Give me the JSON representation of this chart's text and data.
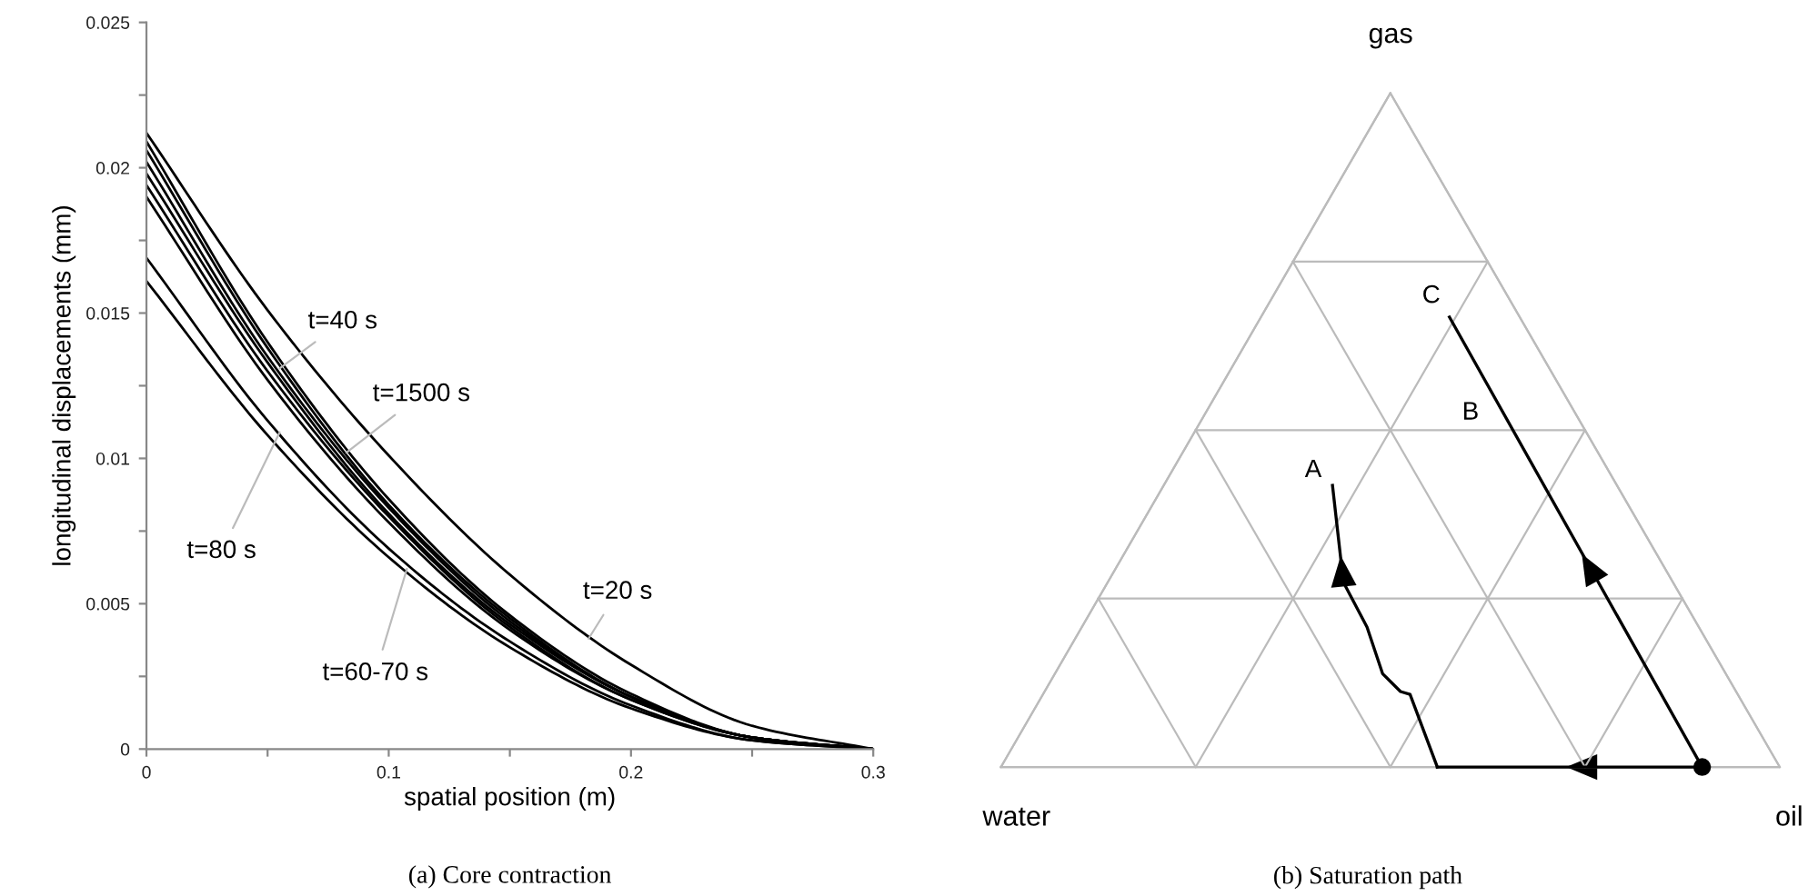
{
  "chart_data": [
    {
      "type": "line",
      "xlabel": "spatial position (m)",
      "ylabel": "longitudinal displacements (mm)",
      "x": [
        0,
        0.05,
        0.1,
        0.15,
        0.2,
        0.25,
        0.3
      ],
      "xlim": [
        0,
        0.3
      ],
      "ylim": [
        0,
        0.025
      ],
      "xticks": [
        0,
        {
          "value": 0.05,
          "label": null
        },
        0.1,
        {
          "value": 0.15,
          "label": null
        },
        0.2,
        {
          "value": 0.25,
          "label": null
        },
        0.3
      ],
      "yticks": [
        0,
        {
          "value": 0.0025,
          "label": null
        },
        0.005,
        {
          "value": 0.0075,
          "label": null
        },
        0.01,
        {
          "value": 0.0125,
          "label": null
        },
        0.015,
        {
          "value": 0.0175,
          "label": null
        },
        0.02,
        {
          "value": 0.0225,
          "label": null
        },
        0.025
      ],
      "grid": false,
      "legend": false,
      "marker": "none",
      "line_style": "solid",
      "series": [
        {
          "color": "#000000",
          "values": [
            0.0212,
            0.0151,
            0.0101,
            0.006,
            0.0029,
            0.0008,
            0
          ]
        },
        {
          "color": "#000000",
          "values": [
            0.0209,
            0.014,
            0.0086,
            0.0046,
            0.0019,
            0.0004,
            0
          ]
        },
        {
          "color": "#000000",
          "values": [
            0.0206,
            0.0138,
            0.0084,
            0.0045,
            0.0018,
            0.0004,
            0
          ]
        },
        {
          "color": "#000000",
          "values": [
            0.0202,
            0.0135,
            0.0083,
            0.0044,
            0.0018,
            0.0004,
            0
          ]
        },
        {
          "color": "#000000",
          "values": [
            0.0198,
            0.0133,
            0.0081,
            0.0043,
            0.0018,
            0.0004,
            0
          ]
        },
        {
          "color": "#000000",
          "values": [
            0.0194,
            0.013,
            0.008,
            0.0042,
            0.0017,
            0.0004,
            0
          ]
        },
        {
          "color": "#000000",
          "values": [
            0.019,
            0.0127,
            0.0078,
            0.0041,
            0.0017,
            0.0004,
            0
          ]
        },
        {
          "color": "#000000",
          "values": [
            0.0169,
            0.0113,
            0.0069,
            0.0037,
            0.0015,
            0.0003,
            0
          ]
        },
        {
          "color": "#000000",
          "values": [
            0.0161,
            0.0108,
            0.0066,
            0.0035,
            0.0014,
            0.0003,
            0
          ]
        }
      ],
      "annotations": [
        {
          "text": "t=40 s",
          "x": 0.055,
          "y": 0.0131
        },
        {
          "text": "t=1500 s",
          "x": 0.0825,
          "y": 0.0102
        },
        {
          "text": "t=80 s",
          "x": 0.055,
          "y": 0.0109
        },
        {
          "text": "t=20 s",
          "x": 0.1825,
          "y": 0.0038
        },
        {
          "text": "t=60-70 s",
          "x": 0.1075,
          "y": 0.0062
        },
        "(a) Core contraction"
      ]
    },
    {
      "type": "other",
      "annotations": [
        "gas",
        "water",
        "oil",
        "A",
        "B",
        "C",
        "(b) Saturation path"
      ]
    }
  ]
}
